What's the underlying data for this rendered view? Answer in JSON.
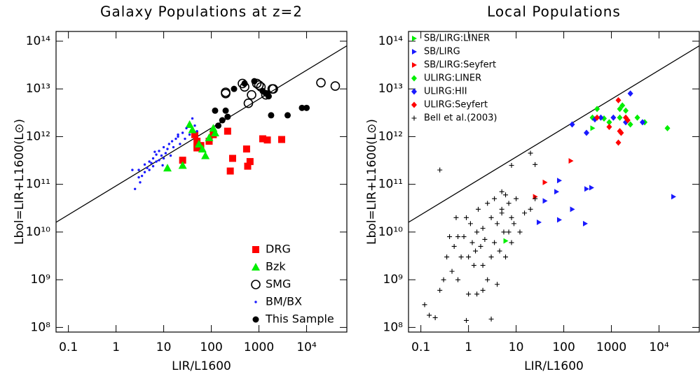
{
  "chart_data": [
    {
      "type": "scatter",
      "title": "Galaxy Populations at z=2",
      "x_label": "LIR/L1600",
      "y_label": "Lbol=LIR+L1600(L⊙)",
      "xscale": "log",
      "yscale": "log",
      "xlim": [
        0.055,
        70000
      ],
      "ylim": [
        80000000,
        160000000000000
      ],
      "xticks": [
        0.1,
        1,
        10,
        100,
        1000,
        {
          "value": 10000,
          "label": "10⁴"
        }
      ],
      "yticks": [
        {
          "value": 100000000,
          "label": "10⁸"
        },
        {
          "value": 1000000000,
          "label": "10⁹"
        },
        {
          "value": 10000000000,
          "label": "10¹⁰"
        },
        {
          "value": 100000000000,
          "label": "10¹¹"
        },
        {
          "value": 1000000000000,
          "label": "10¹²"
        },
        {
          "value": 10000000000000,
          "label": "10¹³"
        },
        {
          "value": 100000000000000,
          "label": "10¹⁴"
        }
      ],
      "grid": false,
      "legend": "lower right",
      "legend_text_colored": true,
      "reference_line": {
        "x": [
          0.055,
          70000
        ],
        "y": [
          16000000000,
          80000000000000
        ]
      },
      "series": [
        {
          "name": "DRG",
          "color": "#ff0000",
          "marker": "square",
          "x": [
            25,
            45,
            50,
            50,
            60,
            90,
            110,
            220,
            250,
            280,
            550,
            580,
            650,
            1200,
            1500,
            3000
          ],
          "values": [
            320000000000,
            1100000000000,
            800000000000,
            580000000000,
            650000000000,
            800000000000,
            1100000000000,
            1300000000000,
            190000000000,
            350000000000,
            550000000000,
            240000000000,
            300000000000,
            900000000000,
            850000000000,
            870000000000
          ]
        },
        {
          "name": "Bzk",
          "color": "#00ee00",
          "marker": "triangle",
          "x": [
            12,
            25,
            35,
            40,
            55,
            65,
            75,
            90,
            110,
            120
          ],
          "values": [
            220000000000,
            250000000000,
            1800000000000,
            1400000000000,
            700000000000,
            550000000000,
            400000000000,
            950000000000,
            1500000000000,
            1200000000000
          ]
        },
        {
          "name": "SMG",
          "color": "#000000",
          "marker": "circle-open",
          "x": [
            200,
            200,
            450,
            500,
            600,
            700,
            900,
            1000,
            1100,
            1400,
            2000,
            1900,
            20000,
            40000
          ],
          "values": [
            8500000000000,
            8000000000000,
            13000000000000,
            11000000000000,
            5000000000000,
            7500000000000,
            13000000000000,
            12000000000000,
            11000000000000,
            7500000000000,
            10000000000000,
            10000000000000,
            13500000000000,
            11500000000000
          ]
        },
        {
          "name": "BM/BX",
          "color": "#1a1aff",
          "marker": "dot",
          "x": [
            2.5,
            3,
            3,
            3.5,
            4,
            4,
            4.5,
            5,
            5,
            5.5,
            6,
            6,
            7,
            7,
            8,
            8,
            9,
            10,
            10,
            11,
            12,
            13,
            14,
            15,
            16,
            18,
            20,
            22,
            25,
            28,
            30,
            35,
            40,
            45,
            50,
            3.2,
            6.5,
            9.5,
            20,
            2.2
          ],
          "values": [
            80000000000,
            140000000000,
            200000000000,
            150000000000,
            180000000000,
            260000000000,
            220000000000,
            300000000000,
            200000000000,
            280000000000,
            350000000000,
            240000000000,
            300000000000,
            420000000000,
            320000000000,
            500000000000,
            400000000000,
            350000000000,
            600000000000,
            450000000000,
            550000000000,
            700000000000,
            400000000000,
            800000000000,
            600000000000,
            900000000000,
            1000000000000,
            700000000000,
            1200000000000,
            900000000000,
            1500000000000,
            1100000000000,
            2400000000000,
            1700000000000,
            1300000000000,
            110000000000,
            480000000000,
            250000000000,
            1100000000000,
            200000000000
          ]
        },
        {
          "name": "This Sample",
          "color": "#000000",
          "marker": "circle",
          "x": [
            120,
            140,
            170,
            200,
            220,
            300,
            500,
            800,
            1200,
            1400,
            1600,
            1800,
            4000,
            8000,
            10000
          ],
          "values": [
            3500000000000,
            1700000000000,
            2200000000000,
            3500000000000,
            2600000000000,
            10000000000000,
            13000000000000,
            14500000000000,
            9000000000000,
            8000000000000,
            7000000000000,
            2800000000000,
            2800000000000,
            4000000000000,
            4000000000000
          ]
        }
      ]
    },
    {
      "type": "scatter",
      "title": "Local Populations",
      "x_label": "LIR/L1600",
      "y_label": "Lbol=LIR+L1600(L⊙)",
      "xscale": "log",
      "yscale": "log",
      "xlim": [
        0.055,
        70000
      ],
      "ylim": [
        80000000,
        160000000000000
      ],
      "xticks": [
        0.1,
        1,
        10,
        100,
        1000,
        {
          "value": 10000,
          "label": "10⁴"
        }
      ],
      "yticks": [
        {
          "value": 100000000,
          "label": "10⁸"
        },
        {
          "value": 1000000000,
          "label": "10⁹"
        },
        {
          "value": 10000000000,
          "label": "10¹⁰"
        },
        {
          "value": 100000000000,
          "label": "10¹¹"
        },
        {
          "value": 1000000000000,
          "label": "10¹²"
        },
        {
          "value": 10000000000000,
          "label": "10¹³"
        },
        {
          "value": 100000000000000,
          "label": "10¹⁴"
        }
      ],
      "grid": false,
      "legend": "upper left",
      "legend_text_colored": false,
      "reference_line": {
        "x": [
          0.055,
          70000
        ],
        "y": [
          16000000000,
          80000000000000
        ]
      },
      "series": [
        {
          "name": "SB/LIRG:LINER",
          "color": "#00ee00",
          "marker": "tri-right",
          "x": [
            6,
            400
          ],
          "values": [
            6500000000,
            1500000000000
          ]
        },
        {
          "name": "SB/LIRG",
          "color": "#1a1aff",
          "marker": "tri-right",
          "x": [
            30,
            40,
            80,
            70,
            80,
            150,
            300,
            280,
            380,
            20000
          ],
          "values": [
            16000000000,
            45000000000,
            120000000000,
            70000000000,
            18000000000,
            30000000000,
            80000000000,
            15000000000,
            85000000000,
            55000000000
          ]
        },
        {
          "name": "SB/LIRG:Seyfert",
          "color": "#ff0000",
          "marker": "tri-right",
          "x": [
            25,
            40,
            140
          ],
          "values": [
            55000000000,
            110000000000,
            310000000000
          ]
        },
        {
          "name": "ULIRG:LINER",
          "color": "#00ee00",
          "marker": "diamond",
          "x": [
            400,
            500,
            700,
            900,
            1500,
            1700,
            2000,
            2500,
            3500,
            5000,
            15000,
            1500
          ],
          "values": [
            2500000000000,
            3800000000000,
            2400000000000,
            2000000000000,
            2500000000000,
            4500000000000,
            3500000000000,
            1800000000000,
            2500000000000,
            2000000000000,
            1500000000000,
            3800000000000
          ]
        },
        {
          "name": "ULIRG:HII",
          "color": "#1a1aff",
          "marker": "diamond",
          "x": [
            150,
            300,
            450,
            600,
            1100,
            2500,
            2000,
            4500
          ],
          "values": [
            1800000000000,
            1200000000000,
            2300000000000,
            2500000000000,
            2500000000000,
            8000000000000,
            2000000000000,
            2000000000000
          ]
        },
        {
          "name": "ULIRG:Seyfert",
          "color": "#ff0000",
          "marker": "diamond",
          "x": [
            500,
            1400,
            1500,
            1600,
            1400,
            2000,
            2200,
            900
          ],
          "values": [
            2500000000000,
            5800000000000,
            1300000000000,
            1200000000000,
            750000000000,
            2500000000000,
            2200000000000,
            1600000000000
          ]
        },
        {
          "name": "Bell et al.(2003)",
          "color": "#000000",
          "marker": "plus",
          "x": [
            0.12,
            0.15,
            0.2,
            0.25,
            0.3,
            0.35,
            0.4,
            0.45,
            0.5,
            0.55,
            0.6,
            0.7,
            0.8,
            0.9,
            1,
            1,
            1.1,
            1.2,
            1.3,
            1.4,
            1.5,
            1.6,
            1.8,
            2,
            2,
            2.2,
            2.5,
            2.5,
            3,
            3,
            3.5,
            3.5,
            4,
            4,
            4.5,
            5,
            5,
            5.5,
            6,
            6,
            7,
            7,
            8,
            8,
            9,
            10,
            12,
            15,
            20,
            25,
            0.25,
            0.6,
            1.5,
            3,
            8,
            20,
            25,
            0.9,
            2,
            5
          ],
          "values": [
            300000000,
            180000000,
            160000000,
            600000000,
            1000000000,
            3000000000,
            8000000000,
            1500000000,
            5000000000,
            20000000000,
            1000000000,
            3000000000,
            8000000000,
            20000000000,
            500000000,
            3000000000,
            15000000000,
            6000000000,
            2000000000,
            4000000000,
            10000000000,
            30000000000,
            5000000000,
            2000000000,
            12000000000,
            7000000000,
            40000000000,
            1000000000,
            3000000000,
            20000000000,
            6000000000,
            50000000000,
            15000000000,
            800000000,
            4000000000,
            25000000000,
            70000000000,
            10000000000,
            3000000000,
            60000000000,
            10000000000,
            40000000000,
            20000000000,
            6000000000,
            15000000000,
            50000000000,
            10000000000,
            25000000000,
            30000000000,
            50000000000,
            200000000000,
            8000000000,
            500000000,
            150000000,
            250000000000,
            450000000000,
            260000000000,
            140000000,
            600000000,
            30000000000
          ]
        }
      ]
    }
  ]
}
